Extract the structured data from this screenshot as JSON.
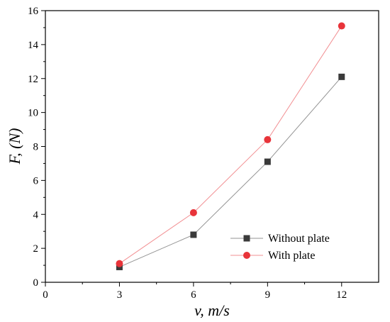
{
  "chart_data": {
    "type": "line",
    "x": [
      3,
      6,
      9,
      12
    ],
    "series": [
      {
        "name": "Without plate",
        "values": [
          0.9,
          2.8,
          7.1,
          12.1
        ],
        "color": "#3a3a3a",
        "marker": "square"
      },
      {
        "name": "With plate",
        "values": [
          1.1,
          4.1,
          8.4,
          15.1
        ],
        "color": "#e8343a",
        "marker": "circle"
      }
    ],
    "xlabel": "v, m/s",
    "ylabel": "F, (N)",
    "xlim": [
      0,
      13.5
    ],
    "ylim": [
      0,
      16
    ],
    "xticks": [
      0,
      3,
      6,
      9,
      12
    ],
    "yticks": [
      0,
      2,
      4,
      6,
      8,
      10,
      12,
      14,
      16
    ],
    "grid": false,
    "legend_position": "bottom-right"
  }
}
